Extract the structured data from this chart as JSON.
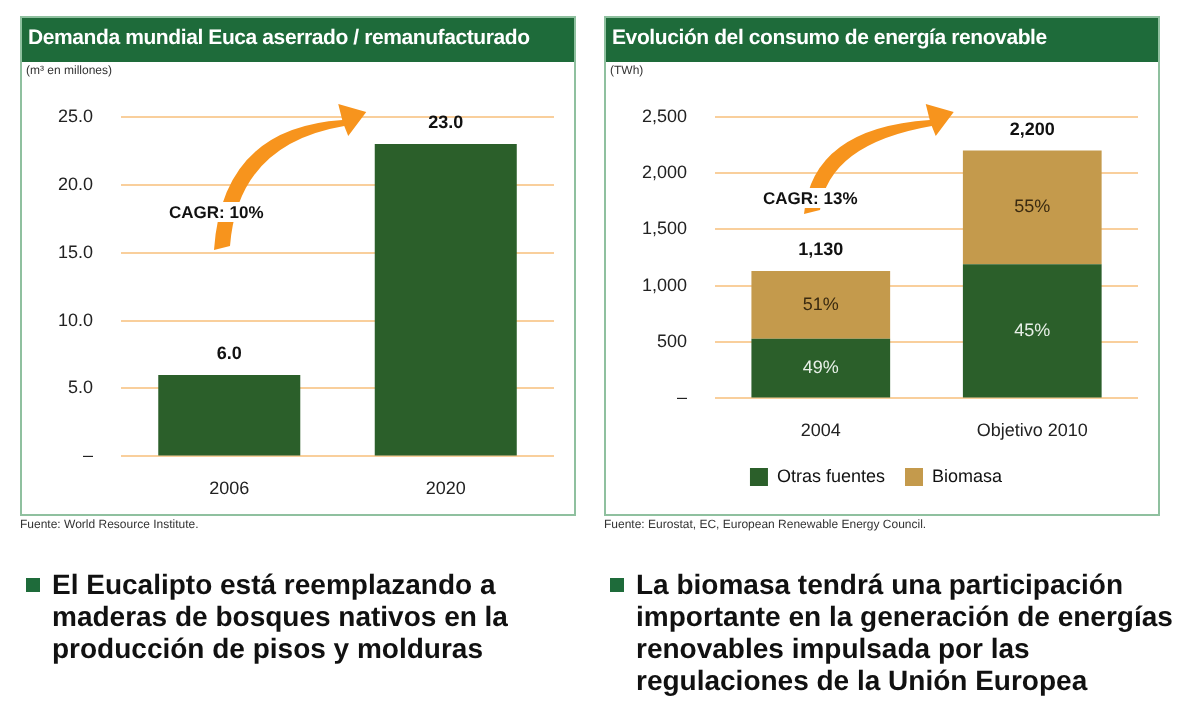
{
  "chart_data": [
    {
      "type": "bar",
      "title": "Demanda mundial Euca aserrado / remanufacturado",
      "ylabel": "(m³ en millones)",
      "categories": [
        "2006",
        "2020"
      ],
      "values": [
        6.0,
        23.0
      ],
      "value_labels": [
        "6.0",
        "23.0"
      ],
      "color": "#2b5f2a",
      "ylim": [
        0,
        25
      ],
      "yticks": [
        {
          "value": 0,
          "label": "–"
        },
        {
          "value": 5,
          "label": "5.0"
        },
        {
          "value": 10,
          "label": "10.0"
        },
        {
          "value": 15,
          "label": "15.0"
        },
        {
          "value": 20,
          "label": "20.0"
        },
        {
          "value": 25,
          "label": "25.0"
        }
      ],
      "grid": "y",
      "annotations": [
        "CAGR:  10%",
        "Fuente: World Resource Institute.",
        "El Eucalipto está reemplazando a maderas de bosques nativos en la producción de pisos y molduras"
      ]
    },
    {
      "type": "bar",
      "title": "Evolución del consumo de energía renovable",
      "ylabel": "(TWh)",
      "categories": [
        "2004",
        "Objetivo 2010"
      ],
      "stacked": true,
      "series": [
        {
          "name": "Otras fuentes",
          "color": "#2b5f2a",
          "values": [
            530,
            1190
          ]
        },
        {
          "name": "Biomasa",
          "color": "#c49a4c",
          "values": [
            600,
            1010
          ]
        }
      ],
      "totals": [
        "1,130",
        "2,200"
      ],
      "ylim": [
        0,
        2500
      ],
      "yticks": [
        {
          "value": 0,
          "label": "–"
        },
        500,
        {
          "value": 1000,
          "label": "1,000"
        },
        {
          "value": 1500,
          "label": "1,500"
        },
        {
          "value": 2000,
          "label": "2,000"
        },
        {
          "value": 2500,
          "label": "2,500"
        }
      ],
      "grid": "y",
      "legend": "bottom",
      "annotations": [
        "CAGR:  13%",
        "Fuente: Eurostat, EC, European Renewable Energy Council.",
        "La biomasa tendrá una participación importante en la generación de energías renovables impulsada por las regulaciones de la Unión Europea",
        "49%",
        "51%",
        "45%",
        "55%"
      ]
    }
  ]
}
